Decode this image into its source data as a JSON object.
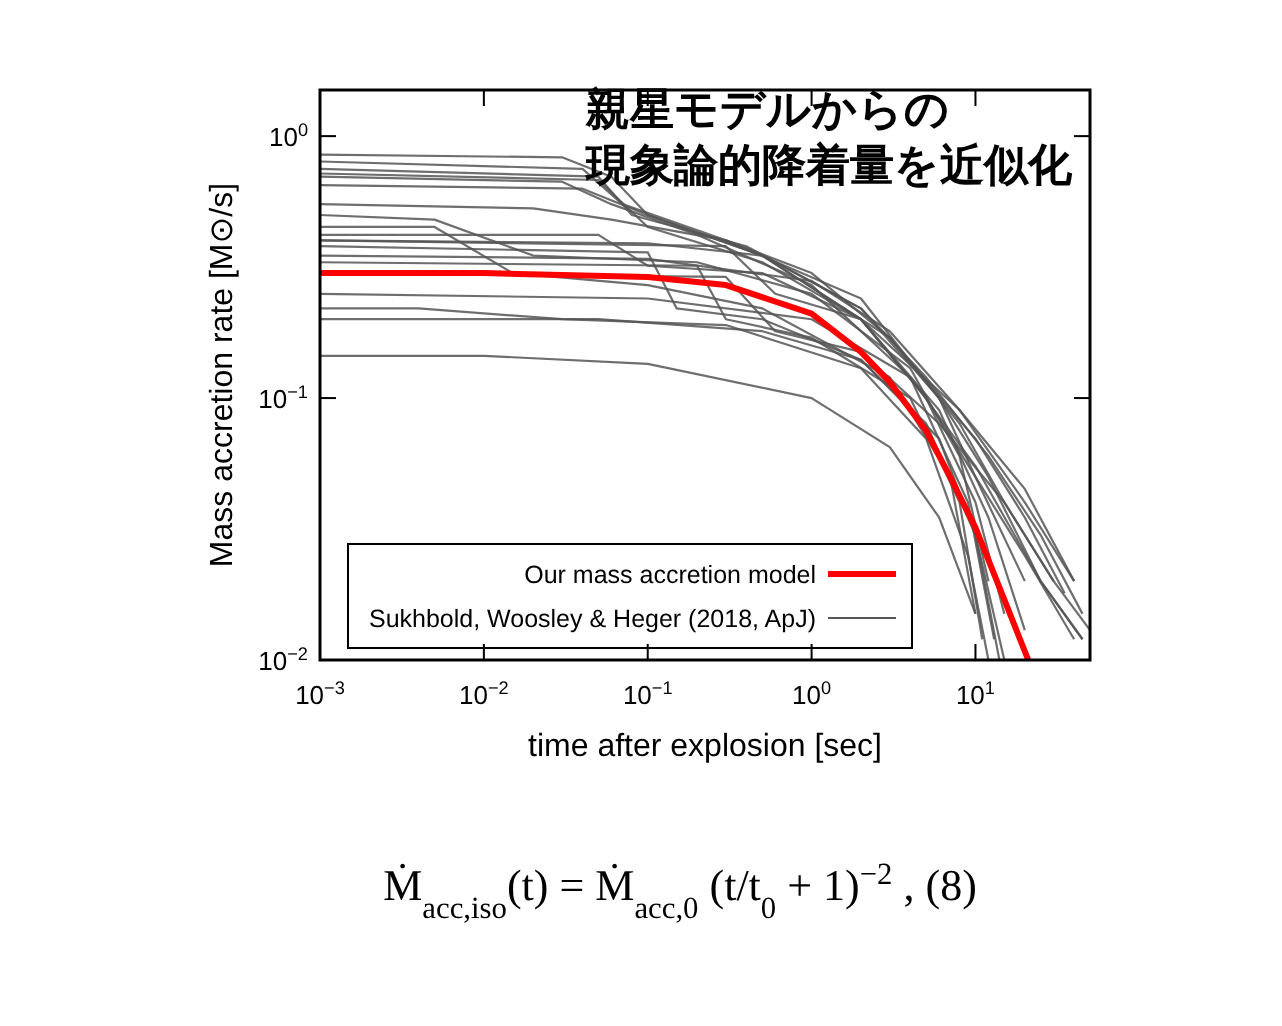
{
  "chart_data": {
    "type": "line",
    "xlabel": "time after explosion [sec]",
    "ylabel": "Mass accretion rate [M⊙/s]",
    "log": "xy",
    "xlim": [
      0.001,
      50
    ],
    "ylim": [
      0.01,
      1.5
    ],
    "xticks": [
      {
        "value": 0.001,
        "label": "10$^{−3}$"
      },
      {
        "value": 0.01,
        "label": "10$^{−2}$"
      },
      {
        "value": 0.1,
        "label": "10$^{−1}$"
      },
      {
        "value": 1,
        "label": "10$^{0}$"
      },
      {
        "value": 10,
        "label": "10$^{1}$"
      }
    ],
    "yticks": [
      {
        "value": 0.01,
        "label": "10$^{−2}$"
      },
      {
        "value": 0.1,
        "label": "10$^{−1}$"
      },
      {
        "value": 1,
        "label": "10$^{0}$"
      }
    ],
    "grid": false,
    "legend": "bottom left",
    "annotations": [
      "親星モデルからの",
      "現象論的降着量を近似化",
      "Ṁ$_{acc,iso}$(t) = Ṁ$_{acc,0}$ (t/t$_{0}$ + 1)$^{−2}$ ,   (8)"
    ],
    "series": [
      {
        "name": "Sukhbold, Woosley & Heger (2018, ApJ)",
        "color": "#555555",
        "x": [
          0.001,
          0.03,
          0.06,
          0.1,
          0.5,
          2,
          5,
          10,
          20,
          40
        ],
        "values": [
          0.85,
          0.83,
          0.7,
          0.5,
          0.35,
          0.2,
          0.1,
          0.05,
          0.025,
          0.012
        ]
      },
      {
        "color": "#555555",
        "x": [
          0.001,
          0.04,
          0.07,
          0.3,
          1,
          3,
          8,
          15,
          30
        ],
        "values": [
          0.8,
          0.75,
          0.55,
          0.4,
          0.3,
          0.17,
          0.08,
          0.04,
          0.02
        ]
      },
      {
        "color": "#555555",
        "x": [
          0.001,
          0.05,
          0.08,
          0.4,
          2,
          6,
          12,
          25,
          45
        ],
        "values": [
          0.75,
          0.7,
          0.5,
          0.38,
          0.22,
          0.1,
          0.05,
          0.02,
          0.012
        ]
      },
      {
        "color": "#555555",
        "x": [
          0.001,
          0.05,
          0.1,
          0.5,
          2,
          5,
          10,
          15
        ],
        "values": [
          0.72,
          0.68,
          0.45,
          0.33,
          0.2,
          0.1,
          0.04,
          0.015
        ]
      },
      {
        "color": "#555555",
        "x": [
          0.001,
          0.03,
          0.06,
          0.2,
          1,
          4,
          9,
          13
        ],
        "values": [
          0.7,
          0.67,
          0.55,
          0.42,
          0.27,
          0.12,
          0.04,
          0.012
        ]
      },
      {
        "color": "#555555",
        "x": [
          0.001,
          0.04,
          0.1,
          0.5,
          3,
          10,
          20,
          35
        ],
        "values": [
          0.65,
          0.63,
          0.5,
          0.35,
          0.17,
          0.07,
          0.035,
          0.018
        ]
      },
      {
        "color": "#555555",
        "x": [
          0.001,
          0.02,
          0.06,
          0.3,
          2,
          6,
          10,
          20
        ],
        "values": [
          0.55,
          0.53,
          0.48,
          0.4,
          0.24,
          0.1,
          0.05,
          0.02
        ]
      },
      {
        "color": "#555555",
        "x": [
          0.001,
          0.005,
          0.02,
          0.2,
          1,
          4,
          8,
          12
        ],
        "values": [
          0.5,
          0.48,
          0.35,
          0.33,
          0.25,
          0.13,
          0.06,
          0.02
        ]
      },
      {
        "color": "#555555",
        "x": [
          0.001,
          0.005,
          0.015,
          0.1,
          0.5,
          3,
          7,
          10
        ],
        "values": [
          0.45,
          0.45,
          0.3,
          0.27,
          0.22,
          0.12,
          0.05,
          0.015
        ]
      },
      {
        "color": "#555555",
        "x": [
          0.001,
          0.05,
          0.1,
          0.5,
          2,
          6,
          12,
          20
        ],
        "values": [
          0.42,
          0.42,
          0.32,
          0.3,
          0.2,
          0.09,
          0.035,
          0.013
        ]
      },
      {
        "color": "#555555",
        "x": [
          0.001,
          0.1,
          0.5,
          2,
          5,
          12,
          25,
          45
        ],
        "values": [
          0.4,
          0.39,
          0.35,
          0.22,
          0.12,
          0.06,
          0.03,
          0.015
        ]
      },
      {
        "color": "#555555",
        "x": [
          0.001,
          0.1,
          0.15,
          0.5,
          2,
          6,
          10,
          14
        ],
        "values": [
          0.38,
          0.36,
          0.22,
          0.2,
          0.14,
          0.07,
          0.03,
          0.01
        ]
      },
      {
        "color": "#555555",
        "x": [
          0.001,
          0.1,
          1,
          3,
          8,
          20,
          40
        ],
        "values": [
          0.35,
          0.34,
          0.28,
          0.18,
          0.09,
          0.04,
          0.02
        ]
      },
      {
        "color": "#555555",
        "x": [
          0.001,
          0.2,
          0.3,
          1,
          4,
          8,
          11
        ],
        "values": [
          0.33,
          0.32,
          0.2,
          0.17,
          0.1,
          0.04,
          0.012
        ]
      },
      {
        "color": "#555555",
        "x": [
          0.001,
          0.1,
          1,
          4,
          10,
          25,
          45
        ],
        "values": [
          0.25,
          0.24,
          0.2,
          0.12,
          0.055,
          0.02,
          0.012
        ]
      },
      {
        "color": "#555555",
        "x": [
          0.001,
          0.05,
          0.5,
          2,
          5,
          10,
          15
        ],
        "values": [
          0.2,
          0.2,
          0.18,
          0.14,
          0.08,
          0.03,
          0.01
        ]
      },
      {
        "color": "#555555",
        "x": [
          0.001,
          0.01,
          0.1,
          1,
          3,
          6,
          10
        ],
        "values": [
          0.145,
          0.145,
          0.135,
          0.1,
          0.065,
          0.035,
          0.015
        ]
      },
      {
        "color": "#555555",
        "x": [
          0.001,
          0.3,
          0.6,
          2,
          6,
          15,
          30,
          50
        ],
        "values": [
          0.3,
          0.29,
          0.18,
          0.15,
          0.08,
          0.04,
          0.02,
          0.013
        ]
      },
      {
        "color": "#555555",
        "x": [
          0.001,
          0.3,
          0.6,
          2,
          8,
          20,
          40
        ],
        "values": [
          0.4,
          0.38,
          0.25,
          0.2,
          0.09,
          0.045,
          0.02
        ]
      },
      {
        "color": "#555555",
        "x": [
          0.001,
          0.004,
          0.03,
          0.3,
          2,
          5,
          9,
          12
        ],
        "values": [
          0.22,
          0.22,
          0.2,
          0.19,
          0.13,
          0.07,
          0.025,
          0.01
        ]
      },
      {
        "name": "Our mass accretion model",
        "color": "#ff0000",
        "x": [
          0.001,
          0.01,
          0.1,
          0.3,
          1,
          2,
          3,
          5,
          7,
          10,
          15,
          21
        ],
        "values": [
          0.3,
          0.3,
          0.29,
          0.27,
          0.21,
          0.15,
          0.115,
          0.075,
          0.05,
          0.032,
          0.017,
          0.01
        ]
      }
    ]
  }
}
